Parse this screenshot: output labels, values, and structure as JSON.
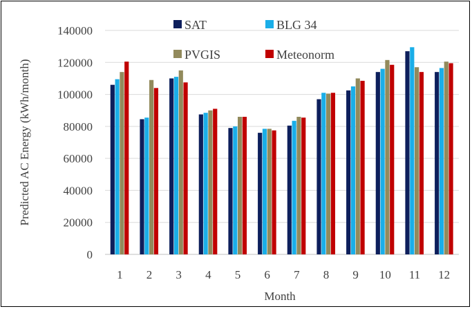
{
  "chart_data": {
    "type": "bar",
    "title": "",
    "xlabel": "Month",
    "ylabel": "Predicted AC Energy (kWh/month)",
    "ylim": [
      0,
      140000
    ],
    "yticks": [
      "0",
      "20000",
      "40000",
      "60000",
      "80000",
      "100000",
      "120000",
      "140000"
    ],
    "ytick_values": [
      0,
      20000,
      40000,
      60000,
      80000,
      100000,
      120000,
      140000
    ],
    "grid": true,
    "legend_position": "top",
    "categories": [
      "1",
      "2",
      "3",
      "4",
      "5",
      "6",
      "7",
      "8",
      "9",
      "10",
      "11",
      "12"
    ],
    "series": [
      {
        "name": "SAT",
        "color": "#0D1F5C",
        "values": [
          106000,
          84500,
          110000,
          87500,
          79000,
          76000,
          80500,
          97000,
          102500,
          114000,
          127000,
          114000
        ]
      },
      {
        "name": "BLG 34",
        "color": "#1AAEE8",
        "values": [
          109500,
          85500,
          111000,
          88500,
          80000,
          78500,
          83500,
          101000,
          105000,
          116000,
          129500,
          116500
        ]
      },
      {
        "name": "PVGIS",
        "color": "#928A5C",
        "values": [
          114000,
          109000,
          115000,
          90000,
          86000,
          78500,
          86000,
          100500,
          110000,
          121500,
          117000,
          120500
        ]
      },
      {
        "name": "Meteonorm",
        "color": "#C00000",
        "values": [
          120500,
          104000,
          107500,
          91000,
          86000,
          77500,
          85500,
          101000,
          108500,
          118500,
          114000,
          119500
        ]
      }
    ]
  }
}
